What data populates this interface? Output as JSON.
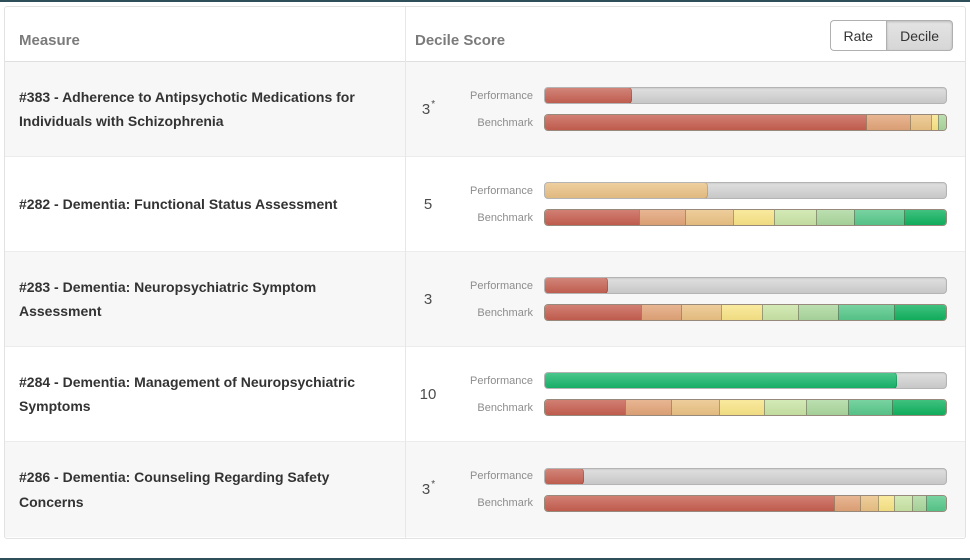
{
  "window": {
    "top_edge_color": "#2e4e5a",
    "bottom_edge_color": "#2e4e5a"
  },
  "header": {
    "measure_column": "Measure",
    "score_column": "Decile Score",
    "rate_button": "Rate",
    "decile_button": "Decile",
    "active_toggle": "Decile"
  },
  "row_labels": {
    "performance": "Performance",
    "benchmark": "Benchmark"
  },
  "palette": {
    "decile_1_red": "#c65f50",
    "decile_2_salmon": "#e2a478",
    "decile_3_tan": "#eac183",
    "decile_4_yellow": "#f8e486",
    "decile_5_lightgreen": "#c9e4a5",
    "decile_6_green": "#abd79d",
    "decile_7_medgreen": "#57c88a",
    "decile_8_darkgreen": "#10b25f",
    "performance_green": "#14b569"
  },
  "rows": [
    {
      "measure": "#383 - Adherence to Antipsychotic Medications for Individuals with Schizophrenia",
      "score": "3",
      "score_flag": "*",
      "performance": {
        "color": "decile_1_red",
        "percent": 22
      },
      "benchmark": [
        {
          "color": "decile_1_red",
          "percent": 80
        },
        {
          "color": "decile_2_salmon",
          "percent": 11
        },
        {
          "color": "decile_3_tan",
          "percent": 5.2
        },
        {
          "color": "decile_4_yellow",
          "percent": 1.8
        },
        {
          "color": "decile_6_green",
          "percent": 2
        }
      ]
    },
    {
      "measure": "#282 - Dementia: Functional Status Assessment",
      "score": "5",
      "score_flag": "",
      "performance": {
        "color": "decile_3_tan",
        "percent": 41
      },
      "benchmark": [
        {
          "color": "decile_1_red",
          "percent": 23.5
        },
        {
          "color": "decile_2_salmon",
          "percent": 11.5
        },
        {
          "color": "decile_3_tan",
          "percent": 12
        },
        {
          "color": "decile_4_yellow",
          "percent": 10
        },
        {
          "color": "decile_5_lightgreen",
          "percent": 10.5
        },
        {
          "color": "decile_6_green",
          "percent": 9.5
        },
        {
          "color": "decile_7_medgreen",
          "percent": 12.5
        },
        {
          "color": "decile_8_darkgreen",
          "percent": 10.5
        }
      ]
    },
    {
      "measure": "#283 - Dementia: Neuropsychiatric Symptom Assessment",
      "score": "3",
      "score_flag": "",
      "performance": {
        "color": "decile_1_red",
        "percent": 16
      },
      "benchmark": [
        {
          "color": "decile_1_red",
          "percent": 24
        },
        {
          "color": "decile_2_salmon",
          "percent": 10
        },
        {
          "color": "decile_3_tan",
          "percent": 10
        },
        {
          "color": "decile_4_yellow",
          "percent": 10
        },
        {
          "color": "decile_5_lightgreen",
          "percent": 9
        },
        {
          "color": "decile_6_green",
          "percent": 10
        },
        {
          "color": "decile_7_medgreen",
          "percent": 14
        },
        {
          "color": "decile_8_darkgreen",
          "percent": 13
        }
      ]
    },
    {
      "measure": "#284 - Dementia: Management of Neuropsychiatric Symptoms",
      "score": "10",
      "score_flag": "",
      "performance": {
        "color": "performance_green",
        "percent": 88
      },
      "benchmark": [
        {
          "color": "decile_1_red",
          "percent": 20
        },
        {
          "color": "decile_2_salmon",
          "percent": 11.5
        },
        {
          "color": "decile_3_tan",
          "percent": 12
        },
        {
          "color": "decile_4_yellow",
          "percent": 11
        },
        {
          "color": "decile_5_lightgreen",
          "percent": 10.5
        },
        {
          "color": "decile_6_green",
          "percent": 10.5
        },
        {
          "color": "decile_7_medgreen",
          "percent": 11
        },
        {
          "color": "decile_8_darkgreen",
          "percent": 13.5
        }
      ]
    },
    {
      "measure": "#286 - Dementia: Counseling Regarding Safety Concerns",
      "score": "3",
      "score_flag": "*",
      "performance": {
        "color": "decile_1_red",
        "percent": 10
      },
      "benchmark": [
        {
          "color": "decile_1_red",
          "percent": 72
        },
        {
          "color": "decile_2_salmon",
          "percent": 6.5
        },
        {
          "color": "decile_3_tan",
          "percent": 4.5
        },
        {
          "color": "decile_4_yellow",
          "percent": 4
        },
        {
          "color": "decile_5_lightgreen",
          "percent": 4.5
        },
        {
          "color": "decile_6_green",
          "percent": 3.5
        },
        {
          "color": "decile_7_medgreen",
          "percent": 5
        }
      ]
    }
  ]
}
